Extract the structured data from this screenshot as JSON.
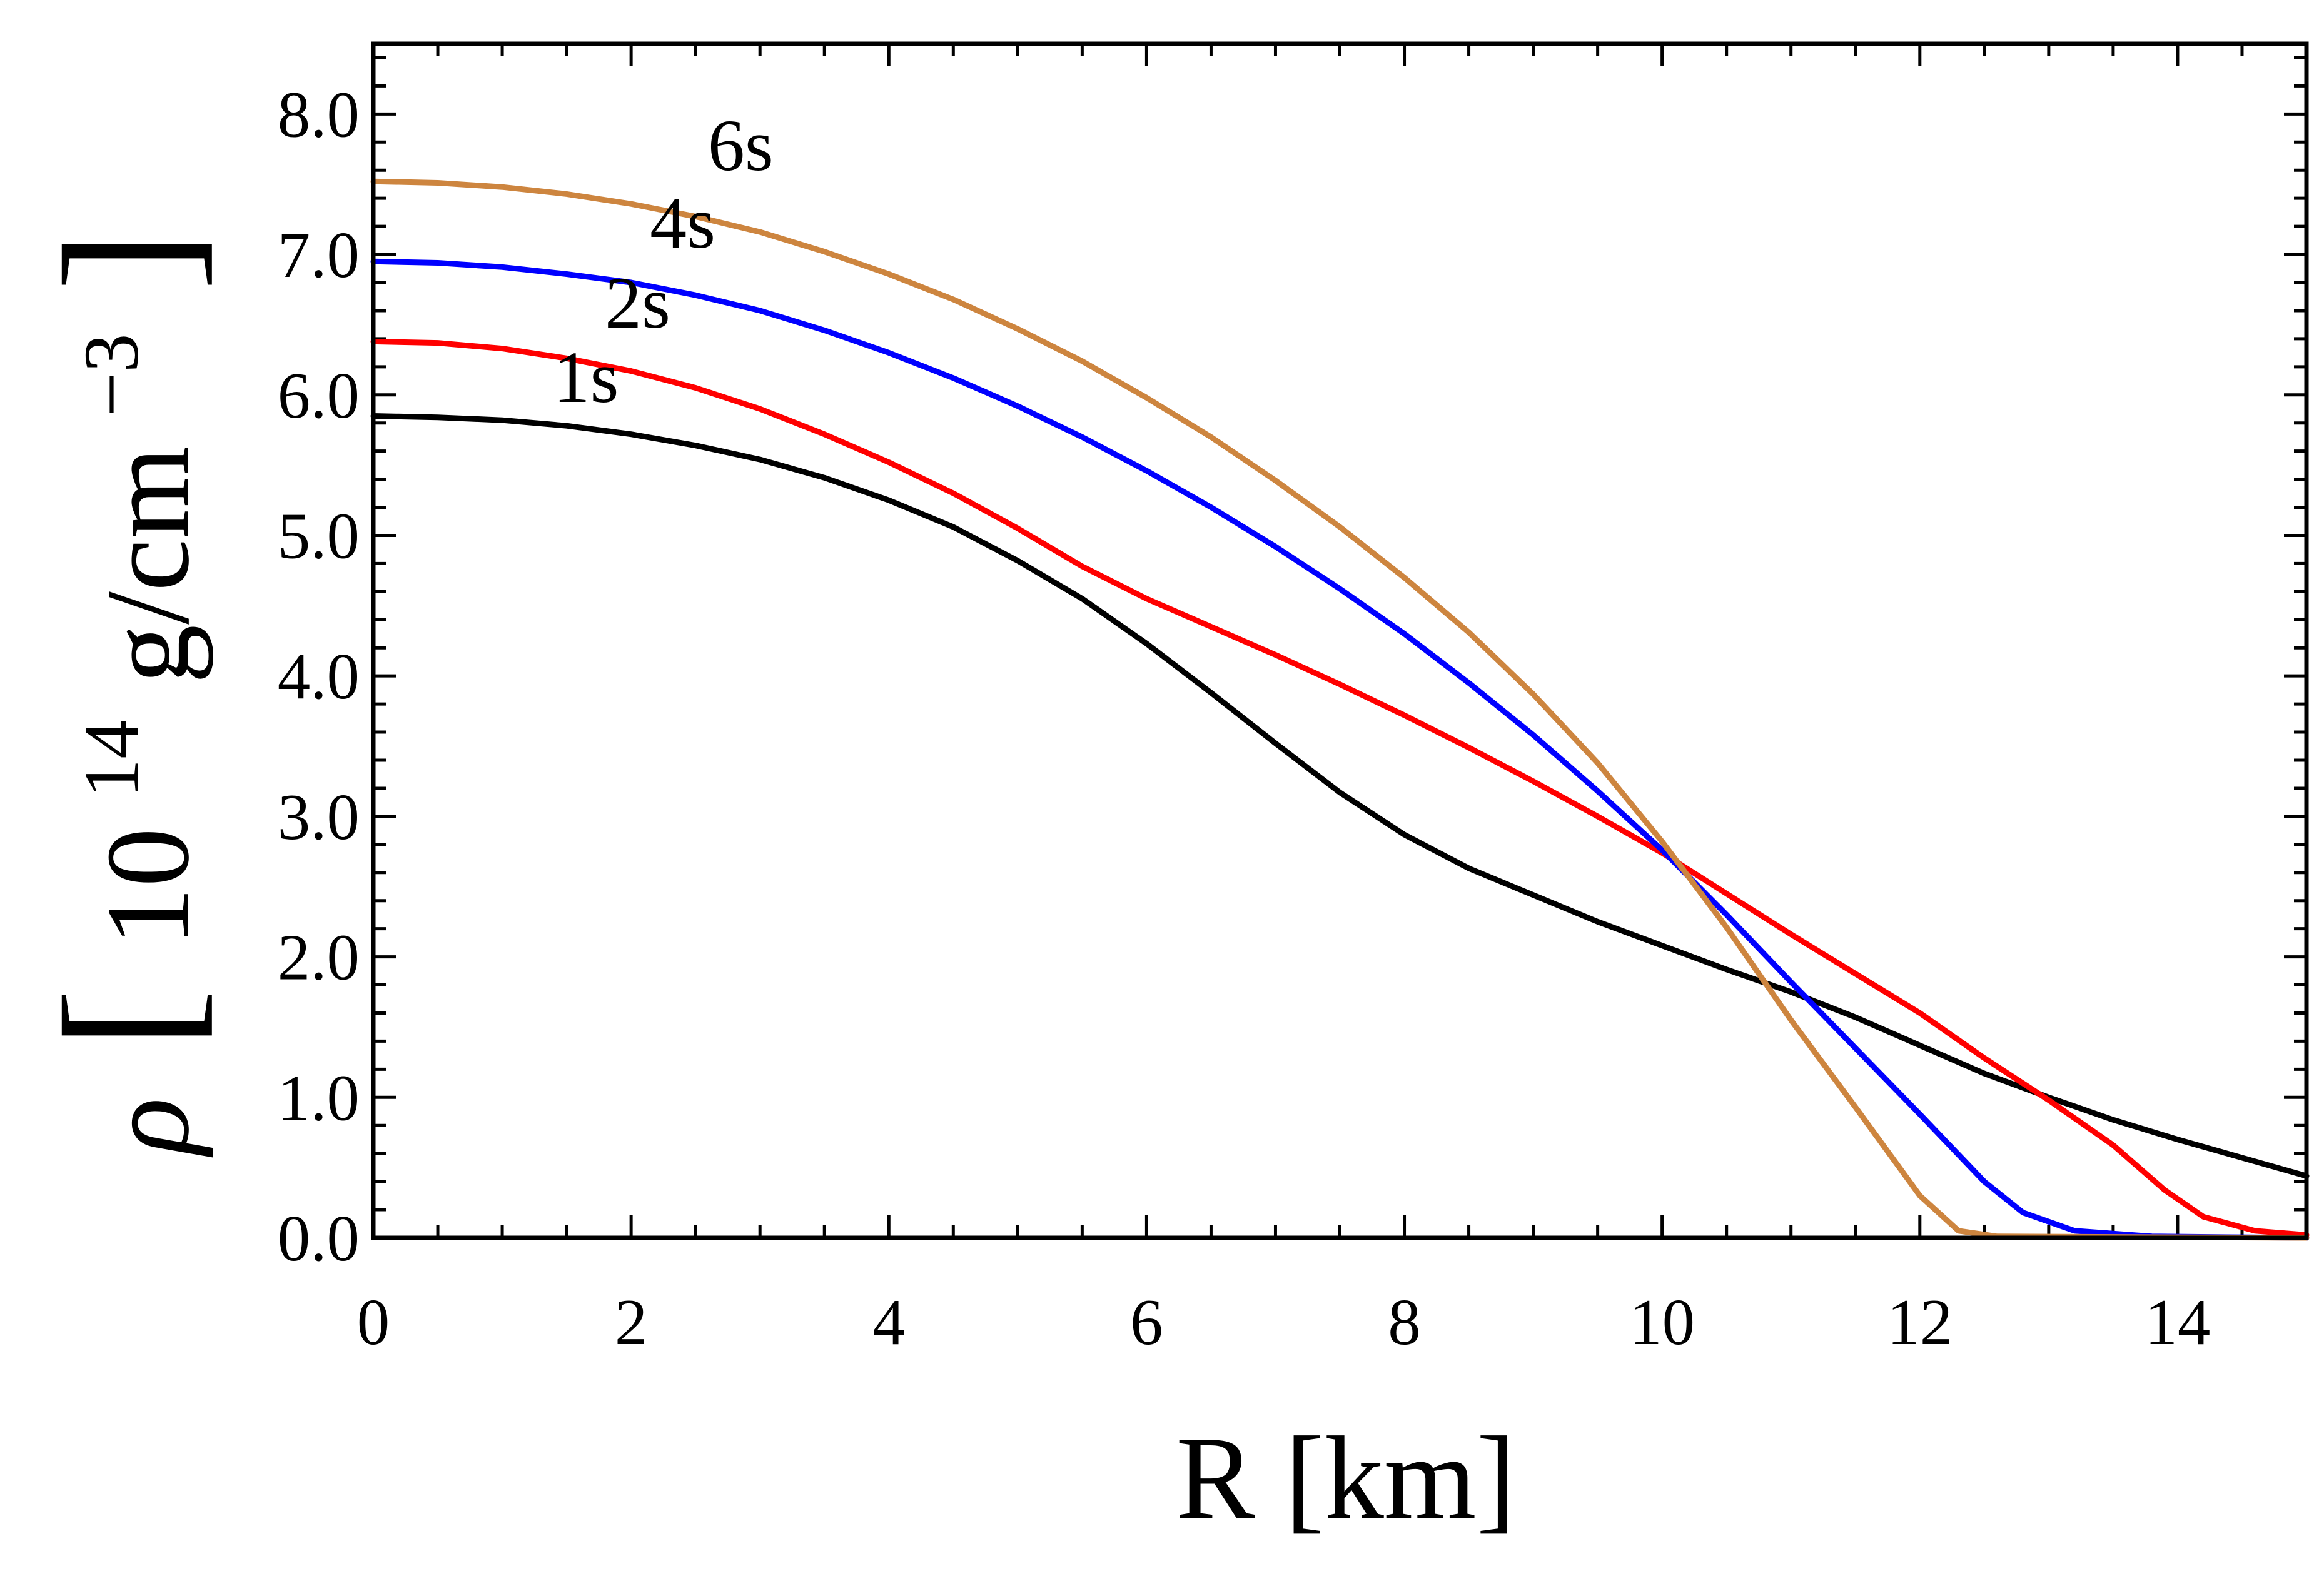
{
  "chart_data": {
    "type": "line",
    "title": "",
    "xlabel": "R [km]",
    "ylabel": {
      "symbol": "ρ",
      "open_bracket": "[",
      "mantissa": "10",
      "exponent": "14",
      "unit": "g/cm",
      "unit_exponent": "−3",
      "close_bracket": "]"
    },
    "xlim": [
      0,
      15
    ],
    "ylim": [
      0,
      8.5
    ],
    "xticks": [
      0,
      2,
      4,
      6,
      8,
      10,
      12,
      14
    ],
    "xtick_labels": [
      "0",
      "2",
      "4",
      "6",
      "8",
      "10",
      "12",
      "14"
    ],
    "yticks": [
      0,
      1,
      2,
      3,
      4,
      5,
      6,
      7,
      8
    ],
    "ytick_labels": [
      "0.0",
      "1.0",
      "2.0",
      "3.0",
      "4.0",
      "5.0",
      "6.0",
      "7.0",
      "8.0"
    ],
    "grid": false,
    "legend": "inline labels",
    "series": [
      {
        "name": "1s",
        "color": "#000000",
        "label_at": [
          1.65,
          5.95
        ],
        "points": [
          [
            0,
            5.85
          ],
          [
            0.5,
            5.84
          ],
          [
            1,
            5.82
          ],
          [
            1.5,
            5.78
          ],
          [
            2,
            5.72
          ],
          [
            2.5,
            5.64
          ],
          [
            3,
            5.54
          ],
          [
            3.5,
            5.41
          ],
          [
            4,
            5.25
          ],
          [
            4.5,
            5.06
          ],
          [
            5,
            4.82
          ],
          [
            5.5,
            4.55
          ],
          [
            6,
            4.23
          ],
          [
            6.5,
            3.88
          ],
          [
            7,
            3.52
          ],
          [
            7.5,
            3.17
          ],
          [
            8,
            2.87
          ],
          [
            8.5,
            2.63
          ],
          [
            9,
            2.44
          ],
          [
            9.5,
            2.25
          ],
          [
            10,
            2.08
          ],
          [
            10.5,
            1.91
          ],
          [
            11,
            1.75
          ],
          [
            11.5,
            1.57
          ],
          [
            12,
            1.37
          ],
          [
            12.5,
            1.17
          ],
          [
            13,
            1.0
          ],
          [
            13.5,
            0.84
          ],
          [
            14,
            0.7
          ],
          [
            14.5,
            0.57
          ],
          [
            15,
            0.44
          ]
        ]
      },
      {
        "name": "2s",
        "color": "#ff0000",
        "label_at": [
          2.05,
          6.48
        ],
        "points": [
          [
            0,
            6.38
          ],
          [
            0.5,
            6.37
          ],
          [
            1,
            6.33
          ],
          [
            1.5,
            6.26
          ],
          [
            2,
            6.17
          ],
          [
            2.5,
            6.05
          ],
          [
            3,
            5.9
          ],
          [
            3.5,
            5.72
          ],
          [
            4,
            5.52
          ],
          [
            4.5,
            5.3
          ],
          [
            5,
            5.05
          ],
          [
            5.5,
            4.78
          ],
          [
            6,
            4.55
          ],
          [
            6.5,
            4.35
          ],
          [
            7,
            4.15
          ],
          [
            7.5,
            3.94
          ],
          [
            8,
            3.72
          ],
          [
            8.5,
            3.49
          ],
          [
            9,
            3.25
          ],
          [
            9.5,
            3.0
          ],
          [
            10,
            2.74
          ],
          [
            10.5,
            2.45
          ],
          [
            11,
            2.16
          ],
          [
            11.5,
            1.88
          ],
          [
            12,
            1.6
          ],
          [
            12.5,
            1.28
          ],
          [
            13,
            0.98
          ],
          [
            13.5,
            0.66
          ],
          [
            13.9,
            0.34
          ],
          [
            14.2,
            0.15
          ],
          [
            14.6,
            0.05
          ],
          [
            15,
            0.02
          ]
        ]
      },
      {
        "name": "4s",
        "color": "#0000ff",
        "label_at": [
          2.4,
          7.05
        ],
        "points": [
          [
            0,
            6.95
          ],
          [
            0.5,
            6.94
          ],
          [
            1,
            6.91
          ],
          [
            1.5,
            6.86
          ],
          [
            2,
            6.8
          ],
          [
            2.5,
            6.71
          ],
          [
            3,
            6.6
          ],
          [
            3.5,
            6.46
          ],
          [
            4,
            6.3
          ],
          [
            4.5,
            6.12
          ],
          [
            5,
            5.92
          ],
          [
            5.5,
            5.7
          ],
          [
            6,
            5.46
          ],
          [
            6.5,
            5.2
          ],
          [
            7,
            4.92
          ],
          [
            7.5,
            4.62
          ],
          [
            8,
            4.3
          ],
          [
            8.5,
            3.95
          ],
          [
            9,
            3.58
          ],
          [
            9.5,
            3.18
          ],
          [
            10,
            2.76
          ],
          [
            10.5,
            2.3
          ],
          [
            11,
            1.82
          ],
          [
            11.5,
            1.35
          ],
          [
            12,
            0.88
          ],
          [
            12.5,
            0.4
          ],
          [
            12.8,
            0.18
          ],
          [
            13.2,
            0.05
          ],
          [
            13.8,
            0.01
          ],
          [
            15,
            0.0
          ]
        ]
      },
      {
        "name": "6s",
        "color": "#cd853f",
        "label_at": [
          2.85,
          7.6
        ],
        "points": [
          [
            0,
            7.52
          ],
          [
            0.5,
            7.51
          ],
          [
            1,
            7.48
          ],
          [
            1.5,
            7.43
          ],
          [
            2,
            7.36
          ],
          [
            2.5,
            7.27
          ],
          [
            3,
            7.16
          ],
          [
            3.5,
            7.02
          ],
          [
            4,
            6.86
          ],
          [
            4.5,
            6.68
          ],
          [
            5,
            6.47
          ],
          [
            5.5,
            6.24
          ],
          [
            6,
            5.98
          ],
          [
            6.5,
            5.7
          ],
          [
            7,
            5.39
          ],
          [
            7.5,
            5.06
          ],
          [
            8,
            4.7
          ],
          [
            8.5,
            4.31
          ],
          [
            9,
            3.87
          ],
          [
            9.5,
            3.38
          ],
          [
            10,
            2.82
          ],
          [
            10.5,
            2.21
          ],
          [
            11,
            1.55
          ],
          [
            11.5,
            0.93
          ],
          [
            12,
            0.3
          ],
          [
            12.3,
            0.05
          ],
          [
            12.6,
            0.01
          ],
          [
            15,
            0.0
          ]
        ]
      }
    ]
  }
}
